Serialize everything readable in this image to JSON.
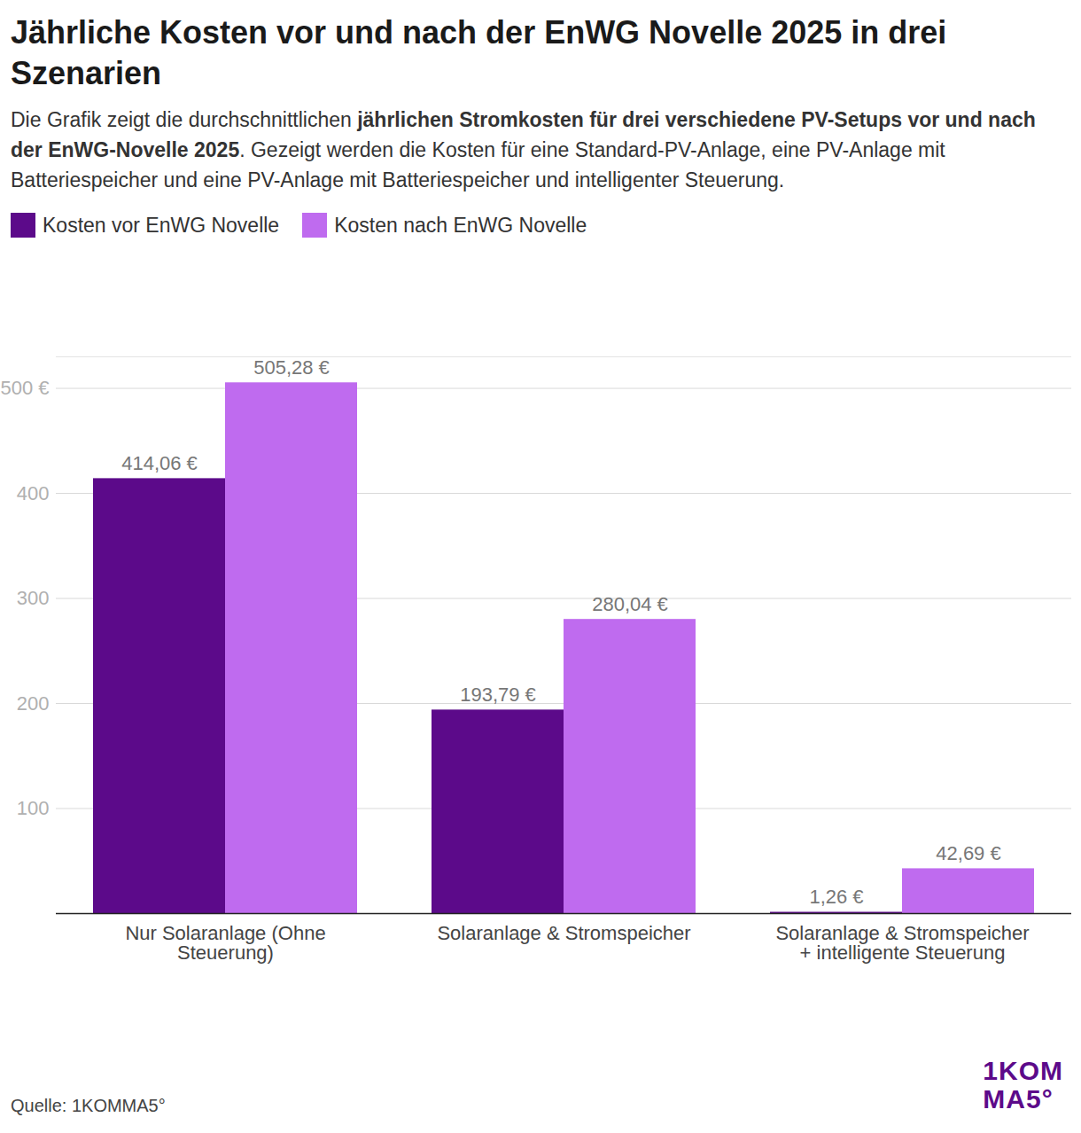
{
  "chart_data": {
    "type": "bar",
    "title": "Jährliche Kosten vor und nach der EnWG Novelle 2025 in drei Szenarien",
    "subtitle": [
      "Die Grafik zeigt die durchschnittlichen ",
      "jährlichen Stromkosten für drei verschiedene PV-Setups vor und nach der EnWG-Novelle 2025",
      ". Gezeigt werden die Kosten für eine Standard-PV-Anlage, eine PV-Anlage mit Batteriespeicher und eine PV-Anlage mit Batteriespeicher und intelligenter Steuerung."
    ],
    "categories": [
      "Nur Solaranlage (Ohne Steuerung)",
      "Solaranlage & Stromspeicher",
      "Solaranlage & Stromspeicher + intelligente Steuerung"
    ],
    "series": [
      {
        "name": "Kosten vor EnWG Novelle",
        "color": "#5c0a8a",
        "values": [
          414.06,
          193.79,
          1.26
        ],
        "value_labels": [
          "414,06 €",
          "193,79 €",
          "1,26 €"
        ]
      },
      {
        "name": "Kosten nach EnWG Novelle",
        "color": "#bf6bef",
        "values": [
          505.28,
          280.04,
          42.69
        ],
        "value_labels": [
          "505,28 €",
          "280,04 €",
          "42,69 €"
        ]
      }
    ],
    "ylim": [
      0,
      530
    ],
    "yticks": [
      100,
      200,
      300,
      400,
      {
        "value": 500,
        "label": "500 €"
      }
    ],
    "grid": true,
    "data_labels": true,
    "legend": "top-left",
    "source": "Quelle: 1KOMMA5°",
    "logo": [
      "1KOM",
      "MA5°"
    ]
  }
}
